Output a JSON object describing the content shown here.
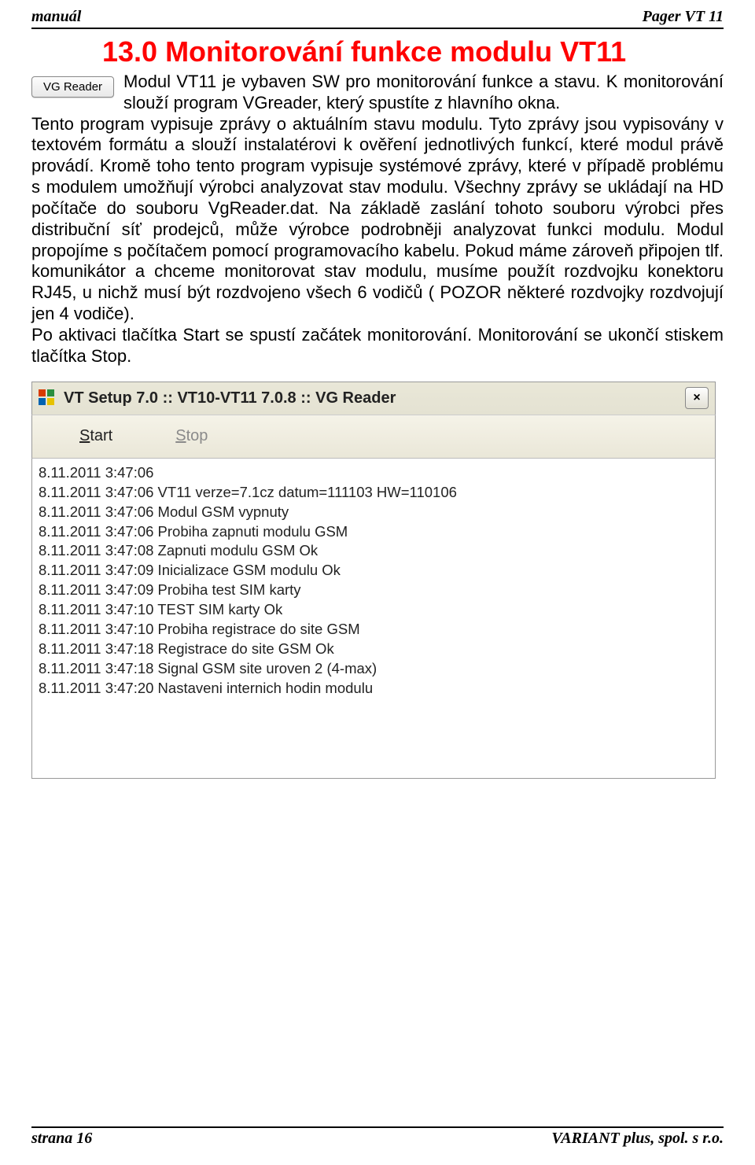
{
  "header": {
    "left": "manuál",
    "right": "Pager VT 11"
  },
  "title": "13.0 Monitorování funkce modulu VT11",
  "vg_button_label": "VG Reader",
  "intro_lines": "Modul VT11 je vybaven SW pro monitorování funkce a stavu. K monitorování slouží program VGreader, který spustíte z hlavního okna.",
  "body_rest": "Tento program vypisuje zprávy o aktuálním stavu modulu. Tyto zprávy jsou vypisovány v textovém formátu a slouží instalatérovi k ověření jednotlivých funkcí, které modul právě provádí. Kromě toho tento program vypisuje systémové zprávy, které v případě problému s modulem umožňují výrobci analyzovat stav modulu. Všechny zprávy se ukládají na HD počítače do souboru VgReader.dat. Na základě zaslání tohoto souboru výrobci přes distribuční síť prodejců, může výrobce podrobněji analyzovat funkci modulu. Modul propojíme s počítačem pomocí programovacího kabelu. Pokud máme zároveň připojen tlf. komunikátor a chceme monitorovat stav modulu, musíme použít rozdvojku konektoru RJ45, u nichž musí být rozdvojeno všech 6 vodičů ( POZOR některé rozdvojky rozdvojují jen 4 vodiče).",
  "body_para2": "Po aktivaci tlačítka Start se spustí začátek monitorování. Monitorování se ukončí stiskem tlačítka Stop.",
  "screenshot": {
    "titlebar_text": "VT Setup 7.0 :: VT10-VT11 7.0.8 :: VG Reader",
    "start_label": "Start",
    "stop_label": "Stop",
    "log": [
      "8.11.2011 3:47:06",
      "8.11.2011 3:47:06  VT11 verze=7.1cz datum=111103 HW=110106",
      "8.11.2011 3:47:06  Modul GSM vypnuty",
      "8.11.2011 3:47:06  Probiha zapnuti modulu GSM",
      "8.11.2011 3:47:08  Zapnuti modulu GSM Ok",
      "8.11.2011 3:47:09  Inicializace GSM modulu Ok",
      "8.11.2011 3:47:09  Probiha test SIM karty",
      "8.11.2011 3:47:10  TEST SIM karty Ok",
      "8.11.2011 3:47:10  Probiha registrace do site GSM",
      "8.11.2011 3:47:18  Registrace do site GSM Ok",
      "8.11.2011 3:47:18  Signal GSM site uroven 2 (4-max)",
      "8.11.2011 3:47:20  Nastaveni internich hodin modulu"
    ]
  },
  "footer": {
    "left": "strana 16",
    "right": "VARIANT plus, spol. s r.o."
  }
}
